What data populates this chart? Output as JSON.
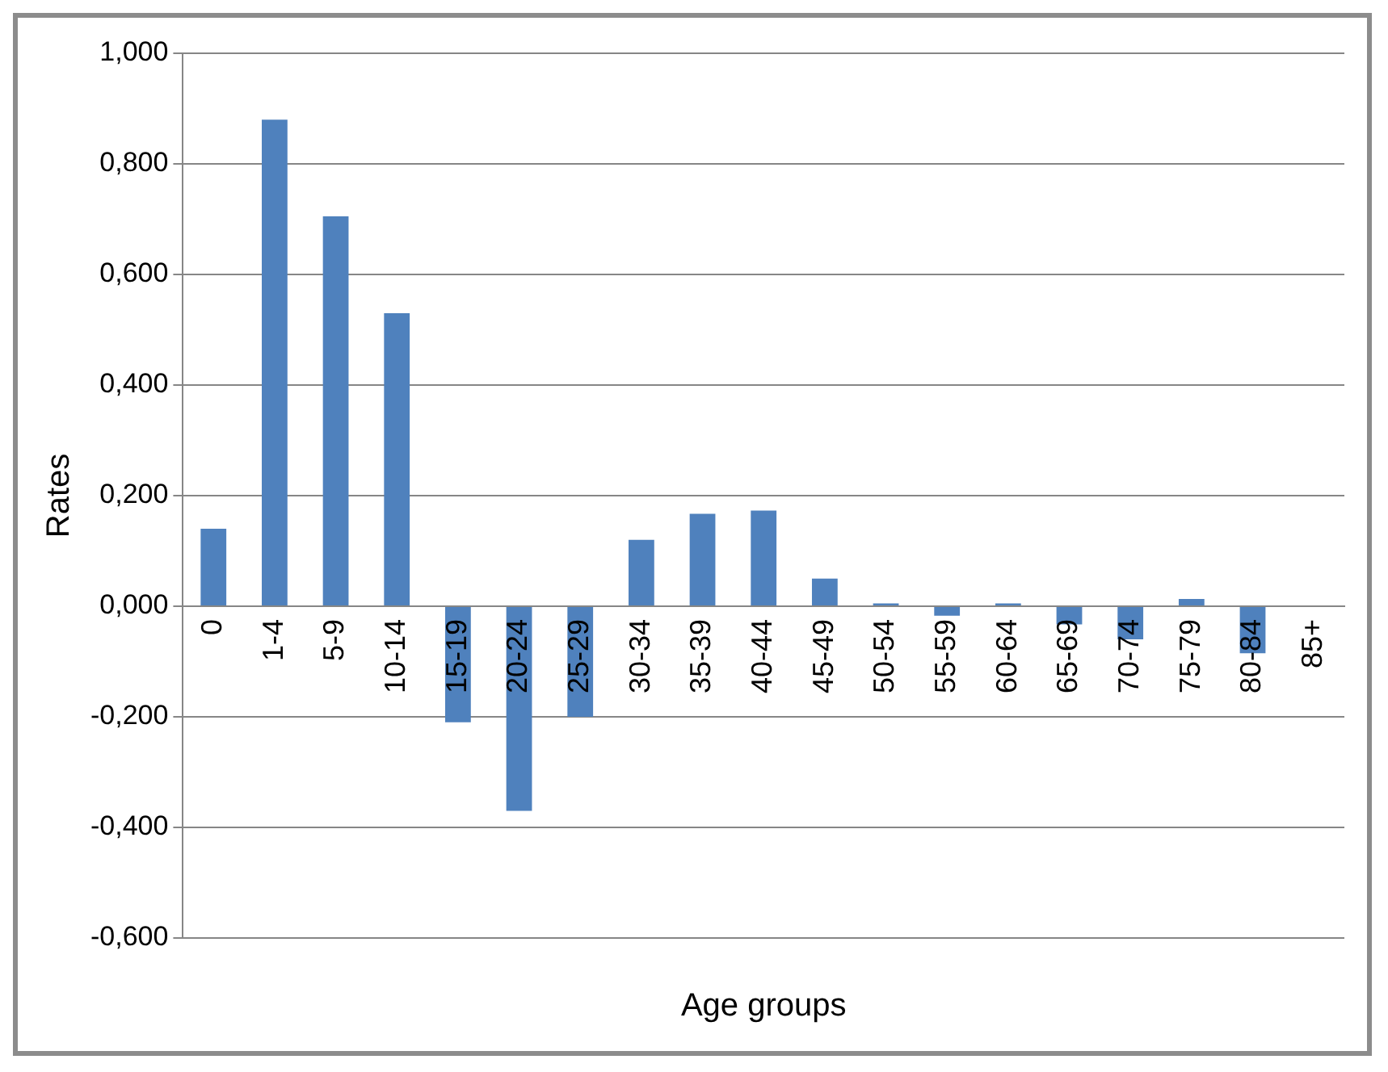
{
  "chart_data": {
    "type": "bar",
    "xlabel": "Age groups",
    "ylabel": "Rates",
    "categories": [
      "0",
      "1-4",
      "5-9",
      "10-14",
      "15-19",
      "20-24",
      "25-29",
      "30-34",
      "35-39",
      "40-44",
      "45-49",
      "50-54",
      "55-59",
      "60-64",
      "65-69",
      "70-74",
      "75-79",
      "80-84",
      "85+"
    ],
    "series": [
      {
        "color": "#4f81bd",
        "values": [
          0.14,
          0.88,
          0.705,
          0.53,
          -0.21,
          -0.37,
          -0.2,
          0.12,
          0.167,
          0.173,
          0.05,
          0.005,
          -0.017,
          0.005,
          -0.033,
          -0.06,
          0.013,
          -0.085,
          null
        ]
      }
    ],
    "ylim": [
      -0.6,
      1.0
    ],
    "yticks": [
      {
        "value": -0.6,
        "label": "-0,600"
      },
      {
        "value": -0.4,
        "label": "-0,400"
      },
      {
        "value": -0.2,
        "label": "-0,200"
      },
      {
        "value": 0,
        "label": "0,000"
      },
      {
        "value": 0.2,
        "label": "0,200"
      },
      {
        "value": 0.4,
        "label": "0,400"
      },
      {
        "value": 0.6,
        "label": "0,600"
      },
      {
        "value": 0.8,
        "label": "0,800"
      },
      {
        "value": 1.0,
        "label": "1,000"
      }
    ],
    "grid": "y",
    "legend": false
  }
}
